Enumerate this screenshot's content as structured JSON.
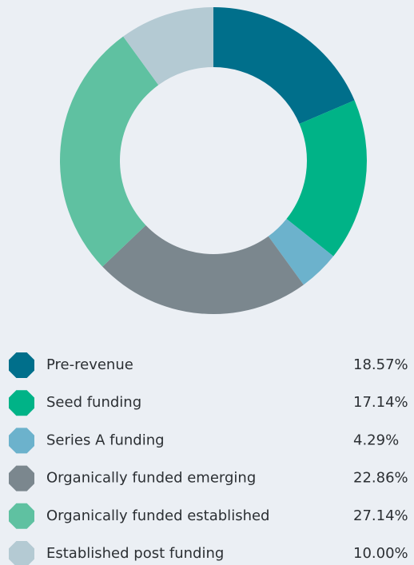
{
  "chart_data": {
    "type": "donut",
    "categories": [
      "Pre-revenue",
      "Seed funding",
      "Series A funding",
      "Organically funded emerging",
      "Organically funded established",
      "Established post funding"
    ],
    "values": [
      18.57,
      17.14,
      4.29,
      22.86,
      27.14,
      10.0
    ],
    "value_labels": [
      "18.57%",
      "17.14%",
      "4.29%",
      "22.86%",
      "27.14%",
      "10.00%"
    ],
    "colors": [
      "#006f8b",
      "#00b387",
      "#6cb2cc",
      "#7b878e",
      "#5fc1a1",
      "#b4cad3"
    ]
  }
}
